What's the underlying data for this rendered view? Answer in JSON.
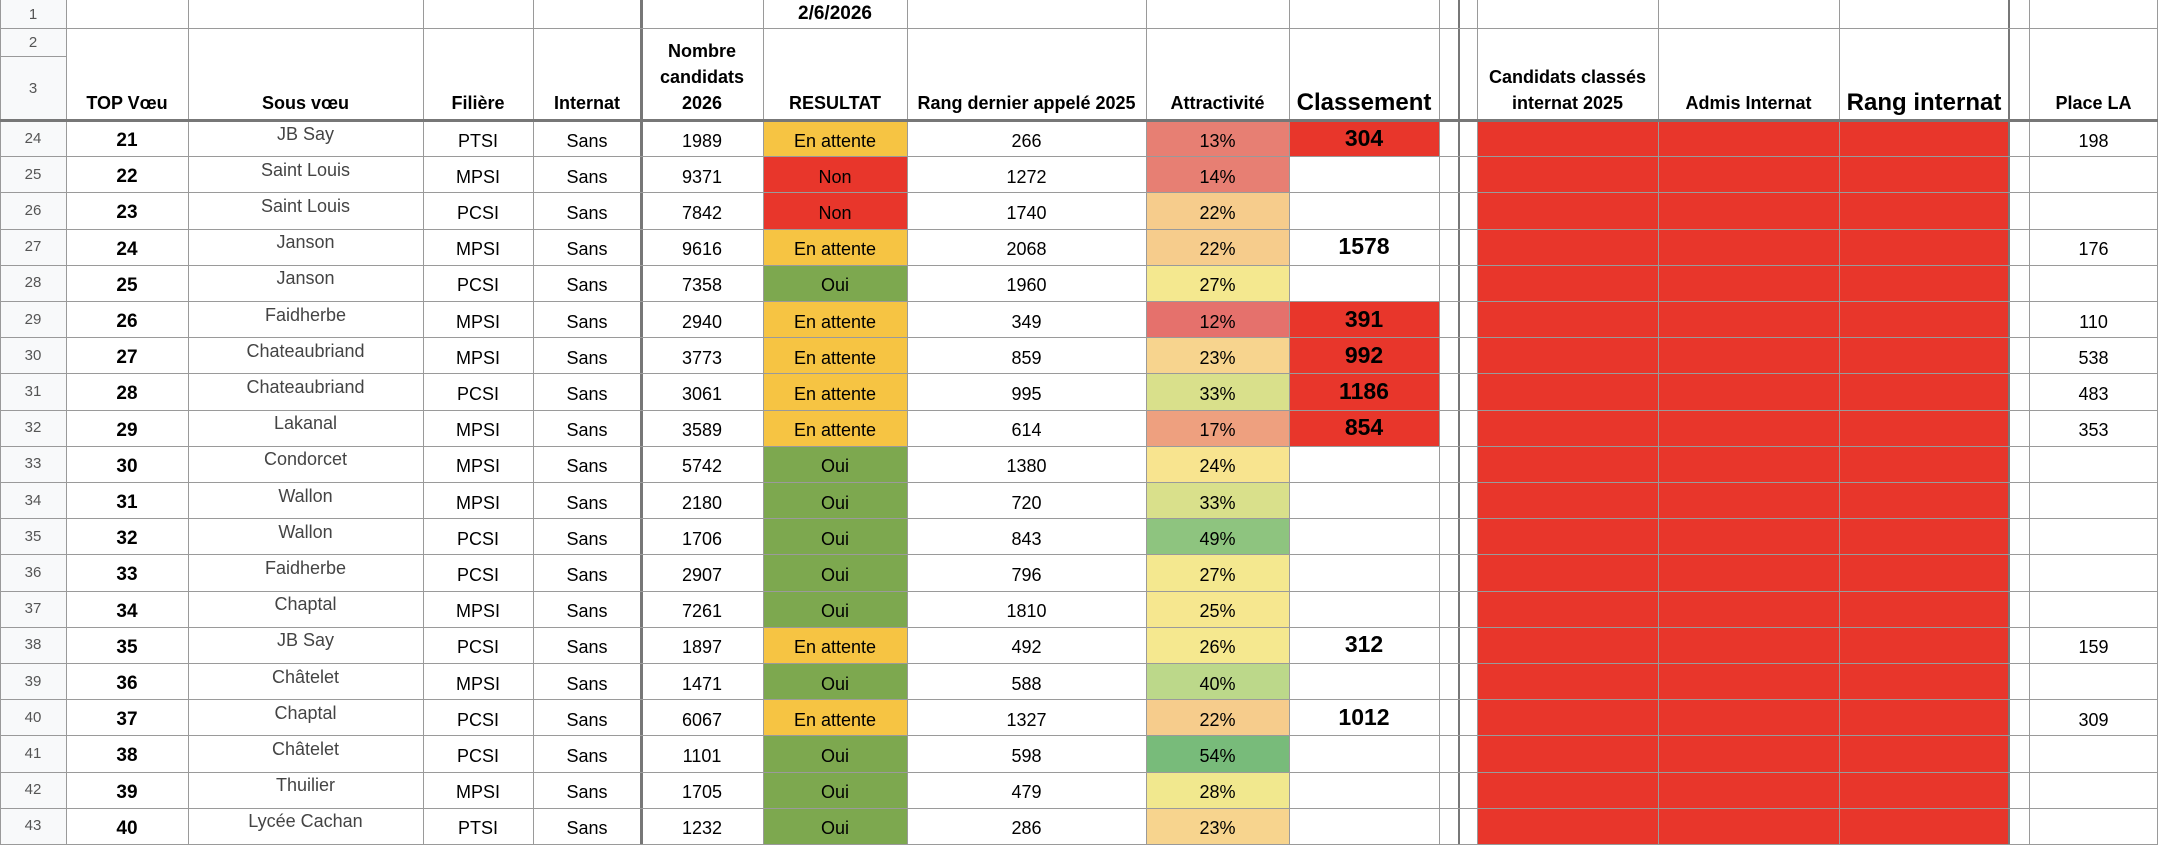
{
  "date": "2/6/2026",
  "header_rows": [
    "1",
    "2",
    "3"
  ],
  "headers": {
    "top_voeu": "TOP Vœu",
    "sous_voeu": "Sous vœu",
    "filiere": "Filière",
    "internat": "Internat",
    "nombre_candidats": "Nombre candidats 2026",
    "resultat": "RESULTAT",
    "rang_dernier": "Rang dernier appelé 2025",
    "attractivite": "Attractivité",
    "classement": "Classement",
    "candidats_internat": "Candidats classés internat 2025",
    "admis_internat": "Admis Internat",
    "rang_internat": "Rang internat",
    "place_la": "Place LA"
  },
  "colors": {
    "en_attente": "#f6c443",
    "non": "#e8362b",
    "oui": "#7da84f",
    "internat_block": "#e8362b",
    "classement_red": "#e8362b"
  },
  "rows": [
    {
      "rownum": "24",
      "top": "21",
      "sous": "JB Say",
      "filiere": "PTSI",
      "internat": "Sans",
      "nombre": "1989",
      "resultat": "En attente",
      "rang": "266",
      "attr": "13%",
      "attr_color": "#e77f73",
      "classement": "304",
      "class_red": true,
      "place": "198"
    },
    {
      "rownum": "25",
      "top": "22",
      "sous": "Saint Louis",
      "filiere": "MPSI",
      "internat": "Sans",
      "nombre": "9371",
      "resultat": "Non",
      "rang": "1272",
      "attr": "14%",
      "attr_color": "#e77f73",
      "classement": "",
      "class_red": false,
      "place": ""
    },
    {
      "rownum": "26",
      "top": "23",
      "sous": "Saint Louis",
      "filiere": "PCSI",
      "internat": "Sans",
      "nombre": "7842",
      "resultat": "Non",
      "rang": "1740",
      "attr": "22%",
      "attr_color": "#f6cc8c",
      "classement": "",
      "class_red": false,
      "place": ""
    },
    {
      "rownum": "27",
      "top": "24",
      "sous": "Janson",
      "filiere": "MPSI",
      "internat": "Sans",
      "nombre": "9616",
      "resultat": "En attente",
      "rang": "2068",
      "attr": "22%",
      "attr_color": "#f6cc8c",
      "classement": "1578",
      "class_red": false,
      "place": "176"
    },
    {
      "rownum": "28",
      "top": "25",
      "sous": "Janson",
      "filiere": "PCSI",
      "internat": "Sans",
      "nombre": "7358",
      "resultat": "Oui",
      "rang": "1960",
      "attr": "27%",
      "attr_color": "#f4e88f",
      "classement": "",
      "class_red": false,
      "place": ""
    },
    {
      "rownum": "29",
      "top": "26",
      "sous": "Faidherbe",
      "filiere": "MPSI",
      "internat": "Sans",
      "nombre": "2940",
      "resultat": "En attente",
      "rang": "349",
      "attr": "12%",
      "attr_color": "#e5716c",
      "classement": "391",
      "class_red": true,
      "place": "110"
    },
    {
      "rownum": "30",
      "top": "27",
      "sous": "Chateaubriand",
      "filiere": "MPSI",
      "internat": "Sans",
      "nombre": "3773",
      "resultat": "En attente",
      "rang": "859",
      "attr": "23%",
      "attr_color": "#f7d48e",
      "classement": "992",
      "class_red": true,
      "place": "538"
    },
    {
      "rownum": "31",
      "top": "28",
      "sous": "Chateaubriand",
      "filiere": "PCSI",
      "internat": "Sans",
      "nombre": "3061",
      "resultat": "En attente",
      "rang": "995",
      "attr": "33%",
      "attr_color": "#d9e08b",
      "classement": "1186",
      "class_red": true,
      "place": "483"
    },
    {
      "rownum": "32",
      "top": "29",
      "sous": "Lakanal",
      "filiere": "MPSI",
      "internat": "Sans",
      "nombre": "3589",
      "resultat": "En attente",
      "rang": "614",
      "attr": "17%",
      "attr_color": "#eea07f",
      "classement": "854",
      "class_red": true,
      "place": "353"
    },
    {
      "rownum": "33",
      "top": "30",
      "sous": "Condorcet",
      "filiere": "MPSI",
      "internat": "Sans",
      "nombre": "5742",
      "resultat": "Oui",
      "rang": "1380",
      "attr": "24%",
      "attr_color": "#f8e48f",
      "classement": "",
      "class_red": false,
      "place": ""
    },
    {
      "rownum": "34",
      "top": "31",
      "sous": "Wallon",
      "filiere": "MPSI",
      "internat": "Sans",
      "nombre": "2180",
      "resultat": "Oui",
      "rang": "720",
      "attr": "33%",
      "attr_color": "#d9e08b",
      "classement": "",
      "class_red": false,
      "place": ""
    },
    {
      "rownum": "35",
      "top": "32",
      "sous": "Wallon",
      "filiere": "PCSI",
      "internat": "Sans",
      "nombre": "1706",
      "resultat": "Oui",
      "rang": "843",
      "attr": "49%",
      "attr_color": "#8ec47f",
      "classement": "",
      "class_red": false,
      "place": ""
    },
    {
      "rownum": "36",
      "top": "33",
      "sous": "Faidherbe",
      "filiere": "PCSI",
      "internat": "Sans",
      "nombre": "2907",
      "resultat": "Oui",
      "rang": "796",
      "attr": "27%",
      "attr_color": "#f4e88f",
      "classement": "",
      "class_red": false,
      "place": ""
    },
    {
      "rownum": "37",
      "top": "34",
      "sous": "Chaptal",
      "filiere": "MPSI",
      "internat": "Sans",
      "nombre": "7261",
      "resultat": "Oui",
      "rang": "1810",
      "attr": "25%",
      "attr_color": "#f6e78f",
      "classement": "",
      "class_red": false,
      "place": ""
    },
    {
      "rownum": "38",
      "top": "35",
      "sous": "JB Say",
      "filiere": "PCSI",
      "internat": "Sans",
      "nombre": "1897",
      "resultat": "En attente",
      "rang": "492",
      "attr": "26%",
      "attr_color": "#f5e88f",
      "classement": "312",
      "class_red": false,
      "place": "159"
    },
    {
      "rownum": "39",
      "top": "36",
      "sous": "Châtelet",
      "filiere": "MPSI",
      "internat": "Sans",
      "nombre": "1471",
      "resultat": "Oui",
      "rang": "588",
      "attr": "40%",
      "attr_color": "#bcd88a",
      "classement": "",
      "class_red": false,
      "place": ""
    },
    {
      "rownum": "40",
      "top": "37",
      "sous": "Chaptal",
      "filiere": "PCSI",
      "internat": "Sans",
      "nombre": "6067",
      "resultat": "En attente",
      "rang": "1327",
      "attr": "22%",
      "attr_color": "#f6cc8c",
      "classement": "1012",
      "class_red": false,
      "place": "309"
    },
    {
      "rownum": "41",
      "top": "38",
      "sous": "Châtelet",
      "filiere": "PCSI",
      "internat": "Sans",
      "nombre": "1101",
      "resultat": "Oui",
      "rang": "598",
      "attr": "54%",
      "attr_color": "#78bb7a",
      "classement": "",
      "class_red": false,
      "place": ""
    },
    {
      "rownum": "42",
      "top": "39",
      "sous": "Thuilier",
      "filiere": "MPSI",
      "internat": "Sans",
      "nombre": "1705",
      "resultat": "Oui",
      "rang": "479",
      "attr": "28%",
      "attr_color": "#f1e88e",
      "classement": "",
      "class_red": false,
      "place": ""
    },
    {
      "rownum": "43",
      "top": "40",
      "sous": "Lycée Cachan",
      "filiere": "PTSI",
      "internat": "Sans",
      "nombre": "1232",
      "resultat": "Oui",
      "rang": "286",
      "attr": "23%",
      "attr_color": "#f7d48e",
      "classement": "",
      "class_red": false,
      "place": ""
    }
  ]
}
